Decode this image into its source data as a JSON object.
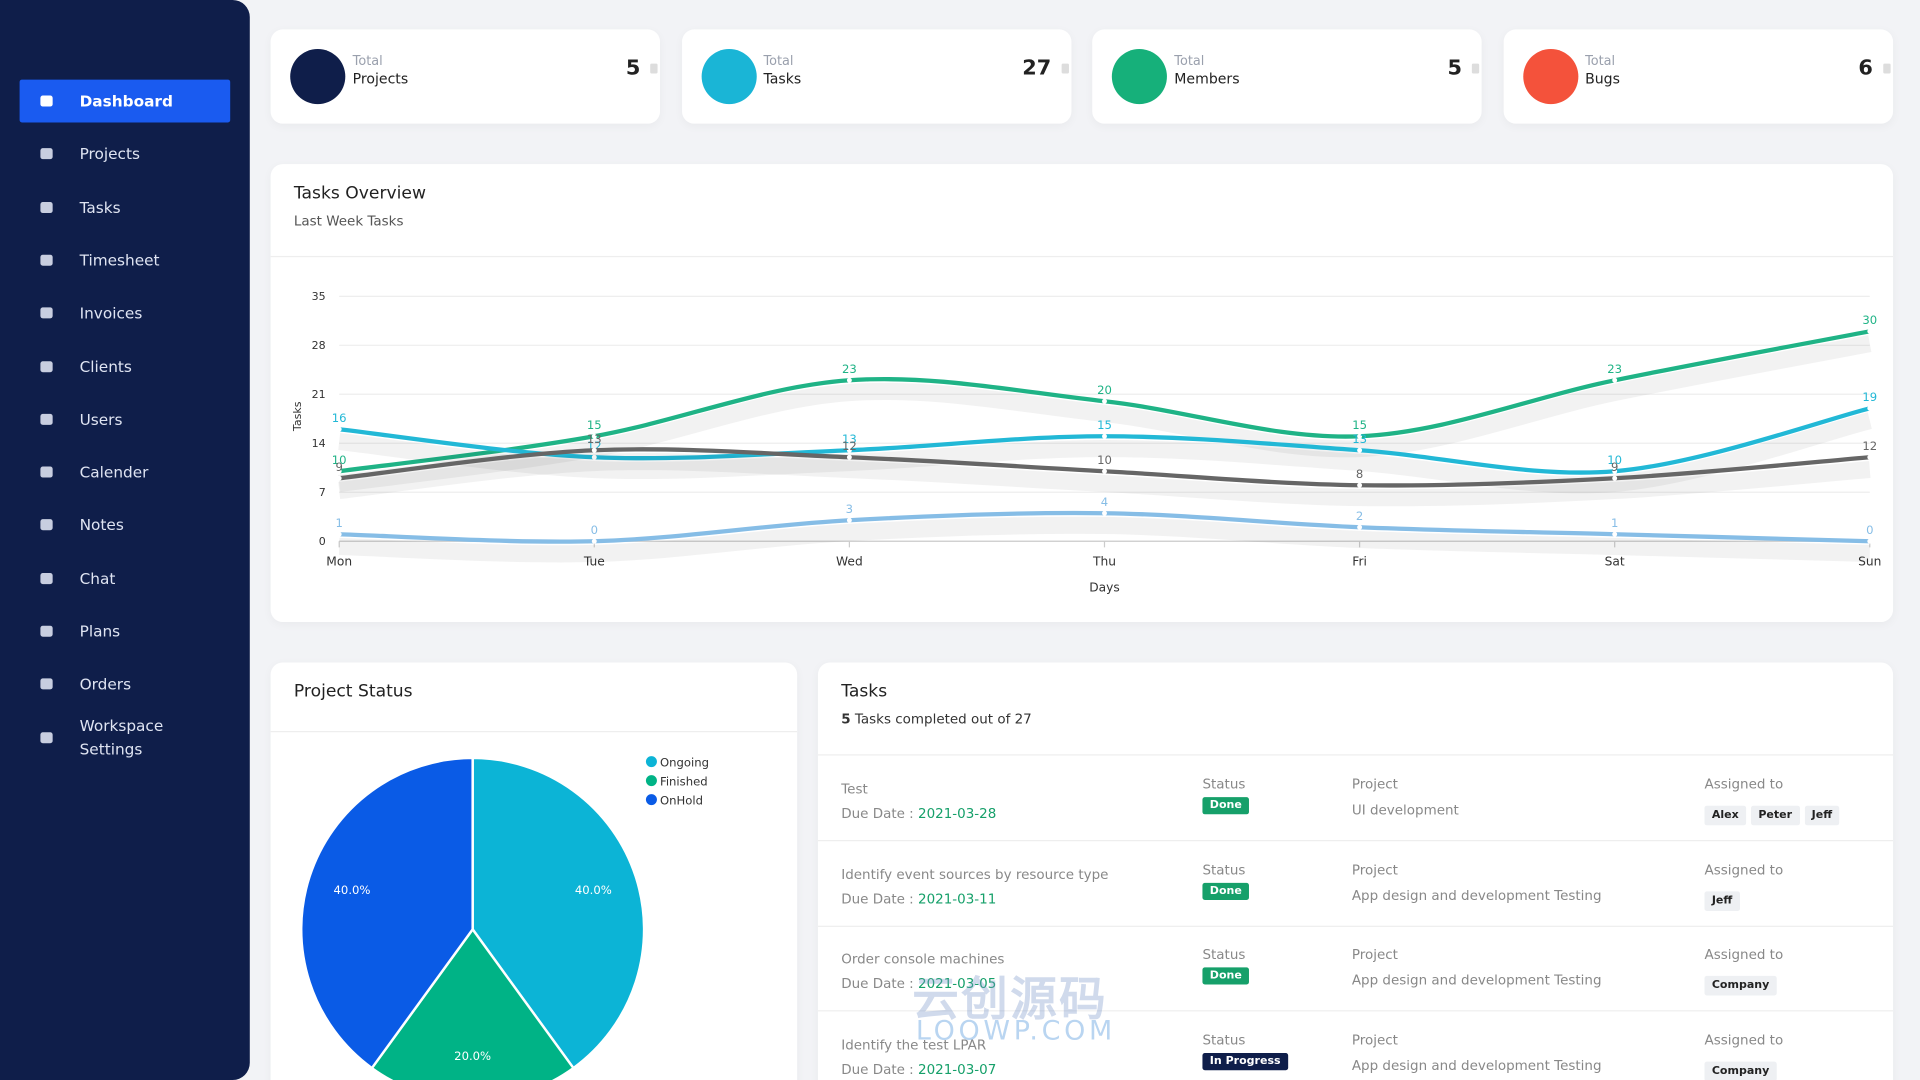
{
  "sidebar": {
    "menu": [
      "Dashboard",
      "Projects",
      "Tasks",
      "Timesheet",
      "Invoices",
      "Clients",
      "Users",
      "Calender",
      "Notes",
      "Chat",
      "Plans",
      "Orders",
      "Workspace Settings"
    ]
  },
  "stats": [
    {
      "label": "Total",
      "name": "Projects",
      "value": 5,
      "color": "#0f1e4a"
    },
    {
      "label": "Total",
      "name": "Tasks",
      "value": 27,
      "color": "#1ab5d6"
    },
    {
      "label": "Total",
      "name": "Members",
      "value": 5,
      "color": "#16b07a"
    },
    {
      "label": "Total",
      "name": "Bugs",
      "value": 6,
      "color": "#f4523b"
    }
  ],
  "chart_data": [
    {
      "type": "line",
      "title": "Tasks Overview",
      "subtitle": "Last Week Tasks",
      "x_label": "Days",
      "y_label": "Tasks",
      "categories": [
        "Mon",
        "Tue",
        "Wed",
        "Thu",
        "Fri",
        "Sat",
        "Sun"
      ],
      "ylim": [
        0,
        35
      ],
      "yticks": [
        0,
        7,
        14,
        21,
        28,
        35
      ],
      "grid": true,
      "series": [
        {
          "color": "#1fb386",
          "values": [
            10,
            15,
            23,
            20,
            15,
            23,
            30
          ]
        },
        {
          "color": "#22b8d6",
          "values": [
            16,
            12,
            13,
            15,
            13,
            10,
            19
          ]
        },
        {
          "color": "#666666",
          "values": [
            9,
            13,
            12,
            10,
            8,
            9,
            12
          ]
        },
        {
          "color": "#86bde6",
          "values": [
            1,
            0,
            3,
            4,
            2,
            1,
            0
          ]
        }
      ]
    },
    {
      "type": "pie",
      "title": "Project Status",
      "legend": "top-right",
      "categories": [
        "Ongoing",
        "Finished",
        "OnHold"
      ],
      "values": [
        40,
        20,
        40
      ],
      "value_labels": [
        "40.0%",
        "20.0%",
        "40.0%"
      ],
      "colors": [
        "#0cb4d6",
        "#00b386",
        "#0a5be6"
      ]
    }
  ],
  "tasks_panel": {
    "title": "Tasks",
    "completed": 5,
    "summary": "Tasks completed out of 27",
    "status_label": "Status",
    "project_label": "Project",
    "assigned_label": "Assigned to",
    "due_label": "Due Date :",
    "rows": [
      {
        "name": "Test",
        "due": "2021-03-28",
        "status": "Done",
        "status_color": "#16a06a",
        "project": "UI development",
        "assigned": [
          "Alex",
          "Peter",
          "Jeff"
        ]
      },
      {
        "name": "Identify event sources by resource type",
        "due": "2021-03-11",
        "status": "Done",
        "status_color": "#16a06a",
        "project": "App design and development Testing",
        "assigned": [
          "Jeff"
        ]
      },
      {
        "name": "Order console machines",
        "due": "2021-03-05",
        "status": "Done",
        "status_color": "#16a06a",
        "project": "App design and development Testing",
        "assigned": [
          "Company"
        ]
      },
      {
        "name": "Identify the test LPAR",
        "due": "2021-03-07",
        "status": "In Progress",
        "status_color": "#0f1e4a",
        "project": "App design and development Testing",
        "assigned": [
          "Company"
        ]
      }
    ]
  },
  "watermark": [
    "云创源码",
    "LOOWP.COM"
  ]
}
